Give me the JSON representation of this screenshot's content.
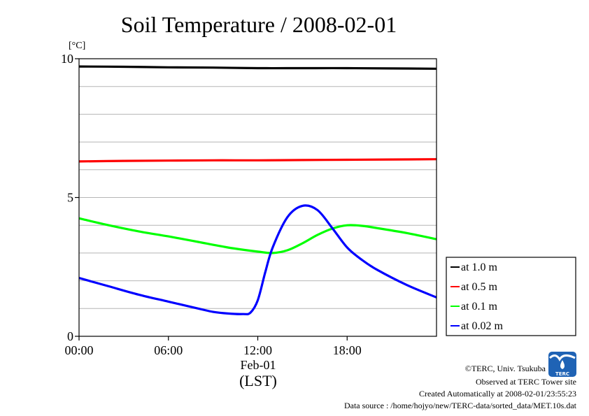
{
  "chart_data": {
    "type": "line",
    "title": "Soil Temperature / 2008-02-01",
    "yunit": "[°C]",
    "ylim": [
      0,
      10
    ],
    "xlim": [
      0,
      24
    ],
    "yticks": [
      {
        "value": 0,
        "label": "0"
      },
      {
        "value": 5,
        "label": "5"
      },
      {
        "value": 10,
        "label": "10"
      }
    ],
    "ygrid": [
      1,
      2,
      3,
      4,
      5,
      6,
      7,
      8,
      9
    ],
    "xticks": [
      {
        "value": 0,
        "label": "00:00"
      },
      {
        "value": 6,
        "label": "06:00"
      },
      {
        "value": 12,
        "label": "12:00"
      },
      {
        "value": 18,
        "label": "18:00"
      }
    ],
    "xsublabel": "Feb-01",
    "xlabel": "(LST)",
    "legend_position": "right",
    "series": [
      {
        "name": "at 1.0 m",
        "color": "#000000",
        "x": [
          0,
          3,
          6,
          9,
          12,
          15,
          18,
          21,
          24
        ],
        "y": [
          9.72,
          9.71,
          9.69,
          9.68,
          9.66,
          9.66,
          9.66,
          9.65,
          9.64
        ]
      },
      {
        "name": "at 0.5 m",
        "color": "#ff0000",
        "x": [
          0,
          3,
          6,
          9,
          12,
          15,
          18,
          21,
          24
        ],
        "y": [
          6.3,
          6.32,
          6.33,
          6.34,
          6.34,
          6.35,
          6.36,
          6.37,
          6.38
        ]
      },
      {
        "name": "at 0.1 m",
        "color": "#00ff00",
        "x": [
          0,
          2,
          4,
          6,
          8,
          10,
          12,
          13,
          14,
          15,
          16,
          17,
          18,
          19,
          20,
          22,
          24
        ],
        "y": [
          4.25,
          4.0,
          3.78,
          3.6,
          3.4,
          3.2,
          3.05,
          3.0,
          3.1,
          3.35,
          3.65,
          3.88,
          4.0,
          3.98,
          3.9,
          3.72,
          3.5
        ]
      },
      {
        "name": "at 0.02 m",
        "color": "#0000ff",
        "x": [
          0,
          2,
          4,
          6,
          8,
          9,
          10,
          11,
          11.5,
          12,
          12.5,
          13,
          14,
          15,
          16,
          17,
          18,
          19,
          20,
          22,
          24
        ],
        "y": [
          2.1,
          1.8,
          1.5,
          1.25,
          1.0,
          0.88,
          0.82,
          0.8,
          0.85,
          1.3,
          2.3,
          3.2,
          4.3,
          4.7,
          4.55,
          3.9,
          3.2,
          2.75,
          2.4,
          1.85,
          1.4
        ]
      }
    ]
  },
  "credits": {
    "line1": "©TERC, Univ. Tsukuba",
    "line2": "Observed at TERC Tower site",
    "line3": "Created Automatically at 2008-02-01/23:55:23",
    "line4": "Data source : /home/hojyo/new/TERC-data/sorted_data/MET.10s.dat",
    "logo_text": "TERC"
  }
}
